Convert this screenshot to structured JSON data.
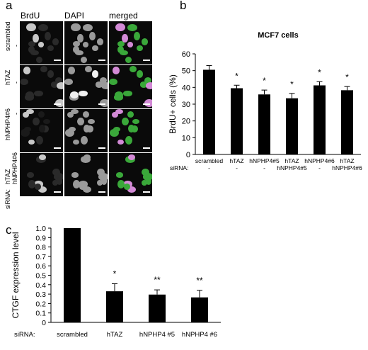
{
  "panels": {
    "a": "a",
    "b": "b",
    "c": "c"
  },
  "panel_a": {
    "columns": [
      "BrdU",
      "DAPI",
      "merged"
    ],
    "rows": [
      "scrambled",
      "hTAZ",
      "hNPHP4#6",
      "hTAZ\nhNPHP4#6"
    ],
    "row_dashes": [
      "-",
      "-",
      "-",
      ""
    ],
    "sirna_label": "siRNA:"
  },
  "chart_data": [
    {
      "type": "bar",
      "title": "MCF7 cells",
      "ylabel": "BrdU+ cells (%)",
      "ylim": [
        0,
        60
      ],
      "yticks": [
        0,
        10,
        20,
        30,
        40,
        50,
        60
      ],
      "sirna_label": "siRNA:",
      "categories": [
        "scrambled",
        "hTAZ",
        "hNPHP4#5",
        "hTAZ hNPHP4#5",
        "hNPHP4#6",
        "hTAZ hNPHP4#6"
      ],
      "category_lines": [
        [
          "scrambled",
          "-"
        ],
        [
          "hTAZ",
          "-"
        ],
        [
          "hNPHP4#5",
          "-"
        ],
        [
          "hTAZ",
          "hNPHP4#5"
        ],
        [
          "hNPHP4#6",
          "-"
        ],
        [
          "hTAZ",
          "hNPHP4#6"
        ]
      ],
      "values": [
        50.5,
        39.5,
        35.8,
        33.5,
        41.2,
        38.3
      ],
      "errors": [
        2.5,
        1.8,
        2.6,
        2.9,
        2.2,
        2.2
      ],
      "annotations": [
        "",
        "*",
        "*",
        "*",
        "*",
        "*"
      ],
      "bar_color": "#000000"
    },
    {
      "type": "bar",
      "title": "",
      "ylabel": "CTGF expression level",
      "ylim": [
        0,
        1.0
      ],
      "yticks": [
        "0",
        "0.1",
        "0.2",
        "0.3",
        "0.4",
        "0.5",
        "0.6",
        "0.7",
        "0.8",
        "0.9",
        "1.0"
      ],
      "sirna_label": "siRNA:",
      "categories": [
        "scrambled",
        "hTAZ",
        "hNPHP4 #5",
        "hNPHP4 #6"
      ],
      "values": [
        1.0,
        0.33,
        0.295,
        0.265
      ],
      "errors": [
        0,
        0.08,
        0.05,
        0.075
      ],
      "annotations": [
        "",
        "*",
        "**",
        "**"
      ],
      "bar_color": "#000000"
    }
  ]
}
